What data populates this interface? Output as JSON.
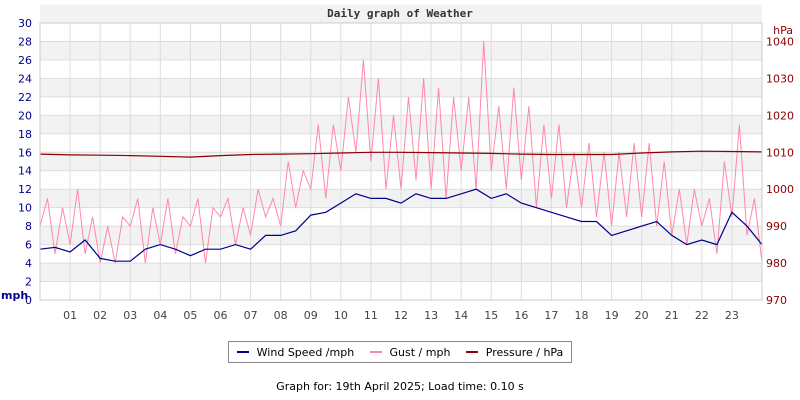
{
  "chart_data": {
    "type": "line",
    "title": "Daily graph of Weather",
    "ylabel_left": "mph",
    "ylabel_right": "hPa",
    "ylim_left": [
      0,
      30
    ],
    "ylim_right": [
      970,
      1045
    ],
    "xlim": [
      0,
      24
    ],
    "left_ticks": [
      "0",
      "2",
      "4",
      "6",
      "8",
      "10",
      "12",
      "14",
      "16",
      "18",
      "20",
      "22",
      "24",
      "26",
      "28",
      "30"
    ],
    "right_ticks": [
      "970",
      "980",
      "990",
      "1000",
      "1010",
      "1020",
      "1030",
      "1040"
    ],
    "x_ticks": [
      "01",
      "02",
      "03",
      "04",
      "05",
      "06",
      "07",
      "08",
      "09",
      "10",
      "11",
      "12",
      "13",
      "14",
      "15",
      "16",
      "17",
      "18",
      "19",
      "20",
      "21",
      "22",
      "23"
    ],
    "grid": true,
    "legend_position": "bottom",
    "series": [
      {
        "name": "Wind Speed /mph",
        "color": "#00008b",
        "axis": "left",
        "step_hours": 0.5,
        "values": [
          5.5,
          5.7,
          5.2,
          6.5,
          4.5,
          4.2,
          4.2,
          5.5,
          6,
          5.5,
          4.8,
          5.5,
          5.5,
          6,
          5.5,
          7,
          7,
          7.5,
          9.2,
          9.5,
          10.5,
          11.5,
          11,
          11,
          10.5,
          11.5,
          11,
          11,
          11.5,
          12,
          11,
          11.5,
          10.5,
          10,
          9.5,
          9,
          8.5,
          8.5,
          7,
          7.5,
          8,
          8.5,
          7,
          6,
          6.5,
          6,
          9.5,
          8,
          6
        ]
      },
      {
        "name": "Gust / mph",
        "color": "#ff88aa",
        "axis": "left",
        "step_hours": 0.25,
        "values": [
          8,
          11,
          5,
          10,
          6,
          12,
          5,
          9,
          4,
          8,
          4,
          9,
          8,
          11,
          4,
          10,
          6,
          11,
          5,
          9,
          8,
          11,
          4,
          10,
          9,
          11,
          6,
          10,
          7,
          12,
          9,
          11,
          8,
          15,
          10,
          14,
          12,
          19,
          11,
          19,
          14,
          22,
          16,
          26,
          15,
          24,
          12,
          20,
          12,
          22,
          13,
          24,
          12,
          23,
          11,
          22,
          14,
          22,
          12,
          28,
          14,
          21,
          12,
          23,
          13,
          21,
          10,
          19,
          11,
          19,
          10,
          16,
          10,
          17,
          9,
          16,
          8,
          16,
          9,
          17,
          9,
          17,
          8,
          15,
          7,
          12,
          6,
          12,
          8,
          11,
          5,
          15,
          9,
          19,
          7,
          11,
          4
        ]
      },
      {
        "name": "Pressure / hPa",
        "color": "#8b0000",
        "axis": "right",
        "step_hours": 1,
        "values": [
          1009.5,
          1009.3,
          1009.2,
          1009.1,
          1008.9,
          1008.7,
          1009.1,
          1009.4,
          1009.5,
          1009.6,
          1009.8,
          1010,
          1010,
          1009.9,
          1009.8,
          1009.7,
          1009.5,
          1009.4,
          1009.4,
          1009.4,
          1009.8,
          1010.1,
          1010.3,
          1010.2,
          1010.1
        ]
      }
    ]
  },
  "footer": "Graph for: 19th April 2025; Load time: 0.10 s"
}
